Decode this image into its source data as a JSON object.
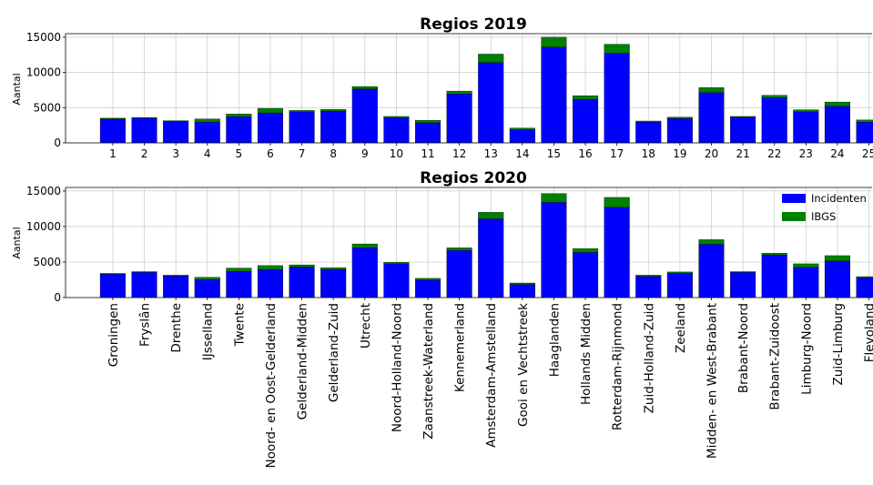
{
  "legend": {
    "placement": "upper-right",
    "series": [
      {
        "name": "Incidenten",
        "color": "#0000ff"
      },
      {
        "name": "IBGS",
        "color": "#008000"
      }
    ]
  },
  "chart_data": [
    {
      "type": "bar",
      "stacked": true,
      "title": "Regios 2019",
      "ylabel": "Aantal",
      "xlabel": "",
      "ylim": [
        0,
        15500
      ],
      "yticks": [
        0,
        5000,
        10000,
        15000
      ],
      "grid": true,
      "legend": false,
      "categories": [
        "1",
        "2",
        "3",
        "4",
        "5",
        "6",
        "7",
        "8",
        "9",
        "10",
        "11",
        "12",
        "13",
        "14",
        "15",
        "16",
        "17",
        "18",
        "19",
        "20",
        "21",
        "22",
        "23",
        "24",
        "25"
      ],
      "series": [
        {
          "name": "Incidenten",
          "color": "#0000ff",
          "values": [
            3400,
            3500,
            3050,
            2950,
            3700,
            4250,
            4400,
            4500,
            7650,
            3550,
            2850,
            6950,
            11400,
            1850,
            13600,
            6150,
            12700,
            2950,
            3450,
            7150,
            3650,
            6400,
            4400,
            5200,
            2950
          ]
        },
        {
          "name": "IBGS",
          "color": "#008000",
          "values": [
            100,
            100,
            100,
            450,
            400,
            650,
            200,
            250,
            350,
            200,
            350,
            400,
            1200,
            250,
            1400,
            550,
            1300,
            150,
            200,
            700,
            100,
            350,
            300,
            600,
            300
          ]
        }
      ]
    },
    {
      "type": "bar",
      "stacked": true,
      "title": "Regios 2020",
      "ylabel": "Aantal",
      "xlabel": "",
      "ylim": [
        0,
        15500
      ],
      "yticks": [
        0,
        5000,
        10000,
        15000
      ],
      "grid": true,
      "legend": true,
      "categories": [
        "Groningen",
        "Fryslân",
        "Drenthe",
        "IJsselland",
        "Twente",
        "Noord- en Oost-Gelderland",
        "Gelderland-Midden",
        "Gelderland-Zuid",
        "Utrecht",
        "Noord-Holland-Noord",
        "Zaanstreek-Waterland",
        "Kennemerland",
        "Amsterdam-Amstelland",
        "Gooi en Vechtstreek",
        "Haaglanden",
        "Hollands Midden",
        "Rotterdam-Rijnmond",
        "Zuid-Holland-Zuid",
        "Zeeland",
        "Midden- en West-Brabant",
        "Brabant-Noord",
        "Brabant-Zuidoost",
        "Limburg-Noord",
        "Zuid-Limburg",
        "Flevoland"
      ],
      "series": [
        {
          "name": "Incidenten",
          "color": "#0000ff",
          "values": [
            3300,
            3550,
            3050,
            2500,
            3700,
            3950,
            4300,
            3950,
            7000,
            4750,
            2450,
            6650,
            11100,
            1850,
            13400,
            6350,
            12700,
            3000,
            3400,
            7500,
            3550,
            6000,
            4250,
            5150,
            2800
          ]
        },
        {
          "name": "IBGS",
          "color": "#008000",
          "values": [
            100,
            100,
            100,
            350,
            450,
            550,
            300,
            250,
            550,
            200,
            250,
            350,
            900,
            200,
            1250,
            550,
            1400,
            150,
            200,
            650,
            100,
            250,
            500,
            750,
            150
          ]
        }
      ]
    }
  ]
}
